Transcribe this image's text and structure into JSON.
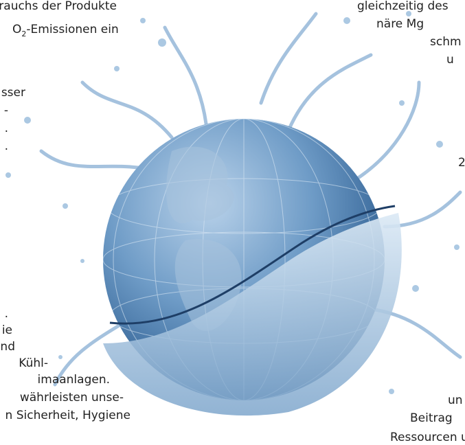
{
  "left_text": {
    "lines": [
      "verbrauchs der Produkte",
      "sser",
      "-",
      ".",
      ".",
      ".",
      "ie",
      "nd",
      "Kühl-",
      "imaanlagen.",
      "währleisten unse-",
      "n Sicherheit, Hygiene"
    ],
    "emission_line": {
      "prefix": "O",
      "sub": "2",
      "rest": "-Emissionen ein"
    }
  },
  "right_text": {
    "lines": [
      "gleichzeitig des",
      "näre Mg",
      "schm",
      "u",
      "2",
      "un",
      "Beitrag",
      "Ressourcen u"
    ]
  }
}
